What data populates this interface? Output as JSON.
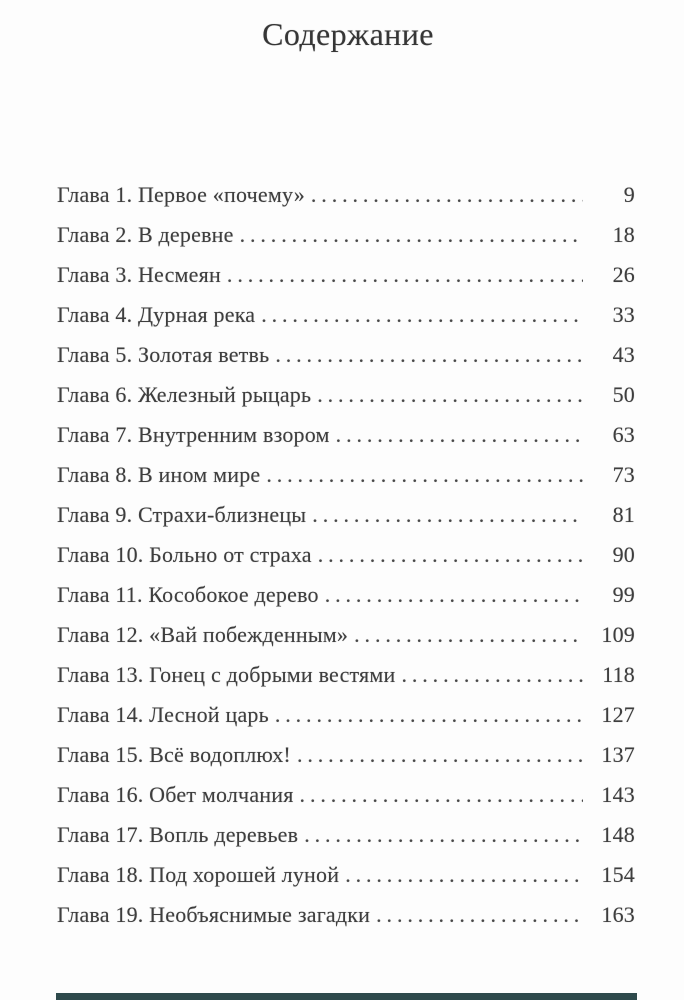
{
  "page": {
    "title": "Содержание"
  },
  "toc": {
    "entries": [
      {
        "label": "Глава 1. Первое «почему»",
        "page": "9"
      },
      {
        "label": "Глава 2. В деревне",
        "page": "18"
      },
      {
        "label": "Глава 3. Несмеян",
        "page": "26"
      },
      {
        "label": "Глава 4. Дурная река",
        "page": "33"
      },
      {
        "label": "Глава 5. Золотая ветвь",
        "page": "43"
      },
      {
        "label": "Глава 6. Железный рыцарь",
        "page": "50"
      },
      {
        "label": "Глава 7. Внутренним взором",
        "page": "63"
      },
      {
        "label": "Глава 8. В ином мире",
        "page": "73"
      },
      {
        "label": "Глава 9. Страхи-близнецы",
        "page": "81"
      },
      {
        "label": "Глава 10. Больно от страха",
        "page": "90"
      },
      {
        "label": "Глава 11. Кособокое дерево",
        "page": "99"
      },
      {
        "label": "Глава 12. «Вай побежденным»",
        "page": "109"
      },
      {
        "label": "Глава 13. Гонец с добрыми вестями",
        "page": "118"
      },
      {
        "label": "Глава 14. Лесной царь",
        "page": "127"
      },
      {
        "label": "Глава 15. Всё водоплюх!",
        "page": "137"
      },
      {
        "label": "Глава 16. Обет молчания",
        "page": "143"
      },
      {
        "label": "Глава 17. Вопль деревьев",
        "page": "148"
      },
      {
        "label": "Глава 18. Под хорошей луной",
        "page": "154"
      },
      {
        "label": "Глава 19. Необъяснимые загадки",
        "page": "163"
      }
    ]
  },
  "colors": {
    "background": "#fdfdfd",
    "text": "#3e3e3e",
    "page_edge_strip": "#2e4a4c"
  }
}
